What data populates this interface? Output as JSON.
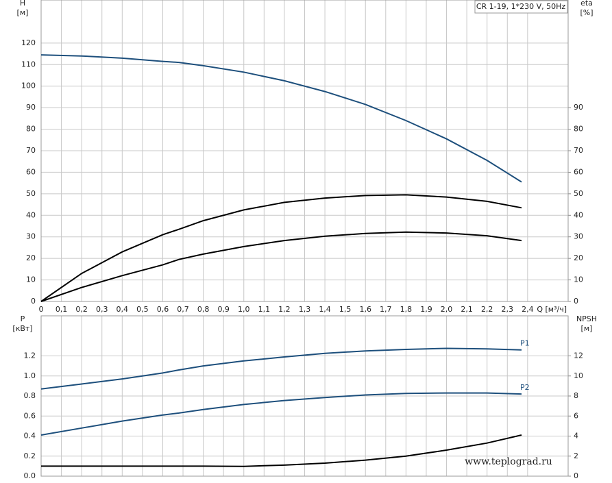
{
  "chart_data": [
    {
      "type": "line",
      "title": "CR 1-19, 1*230 V, 50Hz",
      "x_label": "Q [м³/ч]",
      "y_label": "H",
      "y_unit": "[м]",
      "y2_label": "eta",
      "y2_unit": "[%]",
      "xlim": [
        0,
        2.6
      ],
      "xticks": [
        0,
        {
          "value": 0.1,
          "label": "0,1"
        },
        {
          "value": 0.2,
          "label": "0,2"
        },
        {
          "value": 0.3,
          "label": "0,3"
        },
        {
          "value": 0.4,
          "label": "0,4"
        },
        {
          "value": 0.5,
          "label": "0,5"
        },
        {
          "value": 0.6,
          "label": "0,6"
        },
        {
          "value": 0.7,
          "label": "0,7"
        },
        {
          "value": 0.8,
          "label": "0,8"
        },
        {
          "value": 0.9,
          "label": "0,9"
        },
        {
          "value": 1.0,
          "label": "1,0"
        },
        {
          "value": 1.1,
          "label": "1,1"
        },
        {
          "value": 1.2,
          "label": "1,2"
        },
        {
          "value": 1.3,
          "label": "1,3"
        },
        {
          "value": 1.4,
          "label": "1,4"
        },
        {
          "value": 1.5,
          "label": "1,5"
        },
        {
          "value": 1.6,
          "label": "1,6"
        },
        {
          "value": 1.7,
          "label": "1,7"
        },
        {
          "value": 1.8,
          "label": "1,8"
        },
        {
          "value": 1.9,
          "label": "1,9"
        },
        {
          "value": 2.0,
          "label": "2,0"
        },
        {
          "value": 2.1,
          "label": "2,1"
        },
        {
          "value": 2.2,
          "label": "2,2"
        },
        {
          "value": 2.3,
          "label": "2,3"
        },
        {
          "value": 2.4,
          "label": "2,4"
        }
      ],
      "ylim": [
        0,
        140
      ],
      "yticks": [
        0,
        10,
        20,
        30,
        40,
        50,
        60,
        70,
        80,
        90,
        100,
        110,
        120
      ],
      "y2lim": [
        0,
        140
      ],
      "y2ticks": [
        0,
        10,
        20,
        30,
        40,
        50,
        60,
        70,
        80,
        90
      ],
      "grid": true,
      "x": [
        0,
        0.2,
        0.4,
        0.6,
        0.68,
        0.8,
        1.0,
        1.2,
        1.4,
        1.6,
        1.8,
        2.0,
        2.2,
        2.37
      ],
      "series": [
        {
          "color": "#1d4f7c",
          "values": [
            114.5,
            114,
            113,
            111.5,
            111,
            109.5,
            106.5,
            102.5,
            97.5,
            91.5,
            84,
            75.5,
            65.5,
            55.5
          ]
        },
        {
          "color": "#000000",
          "axis": "y2",
          "values": [
            0,
            13,
            23,
            31,
            33.5,
            37.5,
            42.5,
            46,
            48,
            49.2,
            49.5,
            48.5,
            46.5,
            43.5
          ]
        },
        {
          "color": "#000000",
          "axis": "y2",
          "values": [
            0,
            6.5,
            12,
            17,
            19.5,
            22,
            25.5,
            28.3,
            30.3,
            31.6,
            32.2,
            31.8,
            30.5,
            28.3
          ]
        }
      ]
    },
    {
      "type": "line",
      "y_label": "P",
      "y_unit": "[кВт]",
      "y2_label": "NPSH",
      "y2_unit": "[м]",
      "annotation": "www.teplograd.ru",
      "xlim": [
        0,
        2.6
      ],
      "ylim": [
        0,
        1.6
      ],
      "yticks": [
        {
          "value": 0,
          "label": "0.0"
        },
        0.2,
        0.4,
        0.6,
        0.8,
        {
          "value": 1,
          "label": "1.0"
        },
        1.2
      ],
      "y2lim": [
        0,
        16
      ],
      "y2ticks": [
        0,
        2,
        4,
        6,
        8,
        10,
        12
      ],
      "grid": true,
      "x": [
        0,
        0.2,
        0.4,
        0.6,
        0.68,
        0.8,
        1.0,
        1.2,
        1.4,
        1.6,
        1.8,
        2.0,
        2.2,
        2.37
      ],
      "series": [
        {
          "name": "P1",
          "color": "#1d4f7c",
          "values": [
            0.87,
            0.92,
            0.97,
            1.03,
            1.06,
            1.1,
            1.15,
            1.19,
            1.225,
            1.25,
            1.265,
            1.275,
            1.27,
            1.26
          ]
        },
        {
          "name": "P2",
          "color": "#1d4f7c",
          "values": [
            0.41,
            0.48,
            0.55,
            0.61,
            0.63,
            0.665,
            0.715,
            0.755,
            0.785,
            0.81,
            0.825,
            0.83,
            0.83,
            0.82
          ]
        },
        {
          "color": "#000000",
          "axis": "y2",
          "values": [
            1.0,
            1.0,
            1.0,
            1.0,
            1.0,
            1.0,
            0.98,
            1.1,
            1.3,
            1.6,
            2.0,
            2.6,
            3.3,
            4.1
          ]
        }
      ]
    }
  ]
}
